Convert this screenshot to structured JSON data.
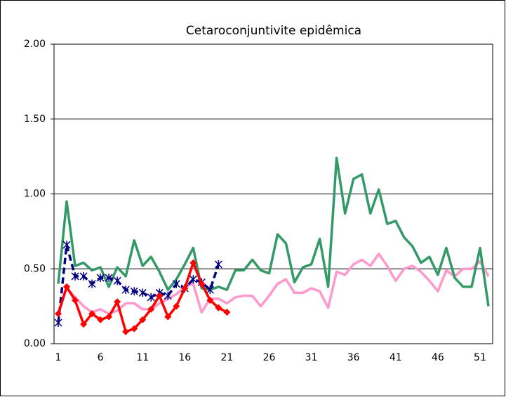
{
  "chart_data": {
    "type": "line",
    "title": "Cetaroconjuntivite  epidêmica",
    "categories": [
      1,
      null,
      null,
      null,
      null,
      6,
      null,
      null,
      null,
      null,
      11,
      null,
      null,
      null,
      null,
      16,
      null,
      null,
      null,
      null,
      21,
      null,
      null,
      null,
      null,
      26,
      null,
      null,
      null,
      null,
      31,
      null,
      null,
      null,
      null,
      36,
      null,
      null,
      null,
      null,
      41,
      null,
      null,
      null,
      null,
      46,
      null,
      null,
      null,
      null,
      51,
      null
    ],
    "ylim": [
      0,
      2
    ],
    "yticks": [
      {
        "value": 0,
        "label": "0.00"
      },
      {
        "value": 0.5,
        "label": "0.50"
      },
      {
        "value": 1,
        "label": "1.00"
      },
      {
        "value": 1.5,
        "label": "1.50"
      },
      {
        "value": 2,
        "label": "2.00"
      }
    ],
    "grid": true,
    "series": [
      {
        "color": "#ff99cc",
        "marker": "none",
        "dash": false,
        "values": [
          0.2,
          0.37,
          0.31,
          0.25,
          0.21,
          0.23,
          0.2,
          0.22,
          0.27,
          0.27,
          0.23,
          0.23,
          0.27,
          0.3,
          0.33,
          0.38,
          0.4,
          0.21,
          0.3,
          0.3,
          0.27,
          0.31,
          0.32,
          0.32,
          0.25,
          0.32,
          0.4,
          0.43,
          0.34,
          0.34,
          0.37,
          0.35,
          0.24,
          0.48,
          0.46,
          0.53,
          0.56,
          0.52,
          0.6,
          0.52,
          0.42,
          0.5,
          0.52,
          0.48,
          0.42,
          0.35,
          0.49,
          0.45,
          0.5,
          0.5,
          0.55,
          0.45
        ]
      },
      {
        "color": "#339966",
        "marker": "none",
        "dash": false,
        "values": [
          0.4,
          0.95,
          0.52,
          0.54,
          0.49,
          0.51,
          0.38,
          0.51,
          0.45,
          0.69,
          0.52,
          0.58,
          0.48,
          0.36,
          0.43,
          0.53,
          0.64,
          0.37,
          0.36,
          0.38,
          0.36,
          0.49,
          0.49,
          0.56,
          0.49,
          0.47,
          0.73,
          0.67,
          0.41,
          0.51,
          0.53,
          0.7,
          0.38,
          1.24,
          0.87,
          1.1,
          1.13,
          0.87,
          1.03,
          0.8,
          0.82,
          0.71,
          0.65,
          0.54,
          0.58,
          0.46,
          0.64,
          0.44,
          0.38,
          0.38,
          0.64,
          0.25
        ]
      },
      {
        "color": "#000080",
        "marker": "asterisk",
        "dash": true,
        "values": [
          0.14,
          0.66,
          0.45,
          0.45,
          0.4,
          0.44,
          0.44,
          0.42,
          0.36,
          0.35,
          0.34,
          0.31,
          0.34,
          0.32,
          0.4,
          0.37,
          0.43,
          0.41,
          0.36,
          0.53,
          null,
          null,
          null,
          null,
          null,
          null,
          null,
          null,
          null,
          null,
          null,
          null,
          null,
          null,
          null,
          null,
          null,
          null,
          null,
          null,
          null,
          null,
          null,
          null,
          null,
          null,
          null,
          null,
          null,
          null,
          null,
          null
        ]
      },
      {
        "color": "#ff0000",
        "marker": "diamond",
        "dash": false,
        "values": [
          0.2,
          0.38,
          0.29,
          0.13,
          0.2,
          0.16,
          0.18,
          0.28,
          0.08,
          0.1,
          0.16,
          0.23,
          0.32,
          0.18,
          0.25,
          0.37,
          0.54,
          0.4,
          0.29,
          0.24,
          0.21,
          null,
          null,
          null,
          null,
          null,
          null,
          null,
          null,
          null,
          null,
          null,
          null,
          null,
          null,
          null,
          null,
          null,
          null,
          null,
          null,
          null,
          null,
          null,
          null,
          null,
          null,
          null,
          null,
          null,
          null,
          null
        ]
      }
    ]
  }
}
